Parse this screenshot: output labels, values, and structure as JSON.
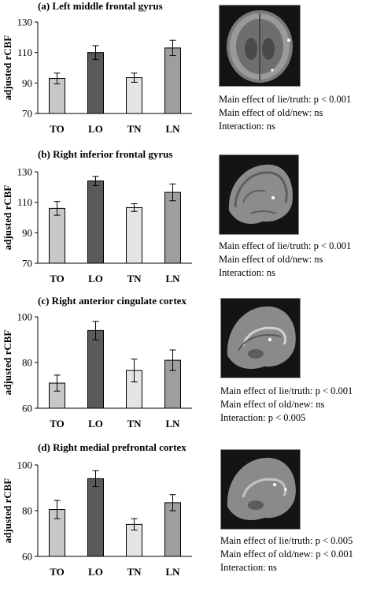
{
  "chart_data": [
    {
      "type": "bar",
      "title": "(a) Left middle frontal gyrus",
      "ylabel": "adjusted rCBF",
      "categories": [
        "TO",
        "LO",
        "TN",
        "LN"
      ],
      "values": [
        93,
        110,
        93.5,
        113
      ],
      "errors": [
        3.5,
        4.5,
        3,
        5
      ],
      "ylim": [
        70,
        130
      ],
      "yticks": [
        "130",
        "110",
        "90",
        "70"
      ],
      "stats": [
        "Main effect of lie/truth: p < 0.001",
        "Main effect of old/new: ns",
        "Interaction: ns"
      ]
    },
    {
      "type": "bar",
      "title": "(b) Right inferior frontal gyrus",
      "ylabel": "adjusted rCBF",
      "categories": [
        "TO",
        "LO",
        "TN",
        "LN"
      ],
      "values": [
        106,
        124,
        106.5,
        116.5
      ],
      "errors": [
        4.5,
        3,
        2.5,
        5.5
      ],
      "ylim": [
        70,
        130
      ],
      "yticks": [
        "130",
        "110",
        "90",
        "70"
      ],
      "stats": [
        "Main effect of lie/truth: p < 0.001",
        "Main effect of old/new: ns",
        "Interaction: ns"
      ]
    },
    {
      "type": "bar",
      "title": "(c) Right anterior cingulate cortex",
      "ylabel": "adjusted rCBF",
      "categories": [
        "TO",
        "LO",
        "TN",
        "LN"
      ],
      "values": [
        71,
        94,
        76.5,
        81
      ],
      "errors": [
        3.5,
        4,
        5,
        4.5
      ],
      "ylim": [
        60,
        100
      ],
      "yticks": [
        "100",
        "80",
        "60"
      ],
      "stats": [
        "Main effect of lie/truth: p < 0.001",
        "Main effect of old/new: ns",
        "Interaction: p < 0.005"
      ]
    },
    {
      "type": "bar",
      "title": "(d) Right medial prefrontal cortex",
      "ylabel": "adjusted rCBF",
      "categories": [
        "TO",
        "LO",
        "TN",
        "LN"
      ],
      "values": [
        80.5,
        94,
        74,
        83.5
      ],
      "errors": [
        4,
        3.5,
        2.5,
        3.5
      ],
      "ylim": [
        60,
        100
      ],
      "yticks": [
        "100",
        "80",
        "60"
      ],
      "stats": [
        "Main effect of lie/truth: p < 0.005",
        "Main effect of old/new: p < 0.001",
        "Interaction: ns"
      ]
    }
  ],
  "bar_colors": [
    "#c8c8c8",
    "#5a5a5a",
    "#e4e4e4",
    "#9e9e9e"
  ]
}
